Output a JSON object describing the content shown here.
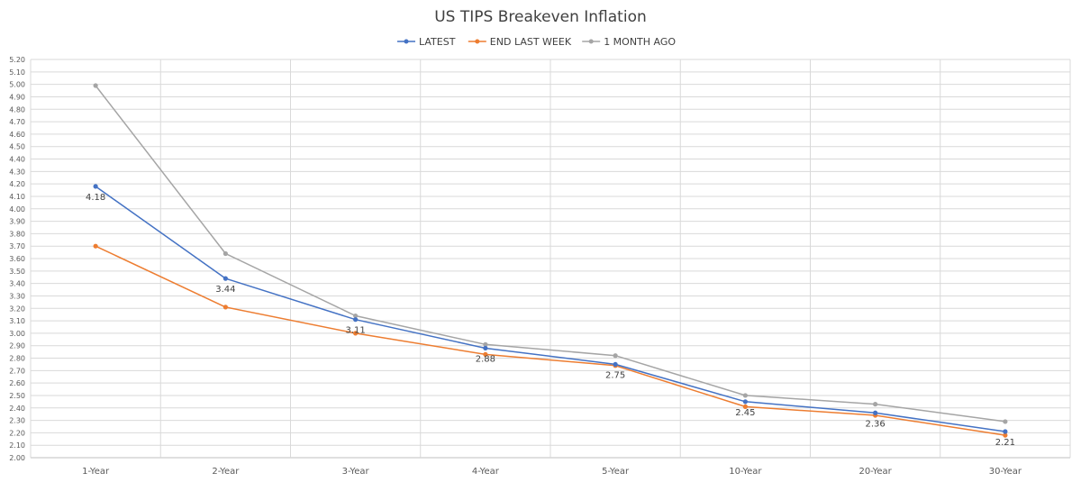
{
  "chart_data": {
    "type": "line",
    "title": "US TIPS Breakeven Inflation",
    "categories": [
      "1-Year",
      "2-Year",
      "3-Year",
      "4-Year",
      "5-Year",
      "10-Year",
      "20-Year",
      "30-Year"
    ],
    "ylim": [
      2.0,
      5.2
    ],
    "ytick_step": 0.1,
    "ytick_labels": [
      "2.00",
      "2.10",
      "2.20",
      "2.30",
      "2.40",
      "2.50",
      "2.60",
      "2.70",
      "2.80",
      "2.90",
      "3.00",
      "3.10",
      "3.20",
      "3.30",
      "3.40",
      "3.50",
      "3.60",
      "3.70",
      "3.80",
      "3.90",
      "4.00",
      "4.10",
      "4.20",
      "4.30",
      "4.40",
      "4.50",
      "4.60",
      "4.70",
      "4.80",
      "4.90",
      "5.00",
      "5.10",
      "5.20"
    ],
    "grid": true,
    "legend_position": "top-center",
    "series": [
      {
        "name": "LATEST",
        "color": "#4472c4",
        "values": [
          4.18,
          3.44,
          3.11,
          2.88,
          2.75,
          2.45,
          2.36,
          2.21
        ],
        "data_labels": [
          "4.18",
          "3.44",
          "3.11",
          "2.88",
          "2.75",
          "2.45",
          "2.36",
          "2.21"
        ]
      },
      {
        "name": "END LAST WEEK",
        "color": "#ed7d31",
        "values": [
          3.7,
          3.21,
          3.0,
          2.83,
          2.74,
          2.41,
          2.34,
          2.18
        ]
      },
      {
        "name": "1 MONTH AGO",
        "color": "#a5a5a5",
        "values": [
          4.99,
          3.64,
          3.14,
          2.91,
          2.82,
          2.5,
          2.43,
          2.29
        ]
      }
    ]
  }
}
